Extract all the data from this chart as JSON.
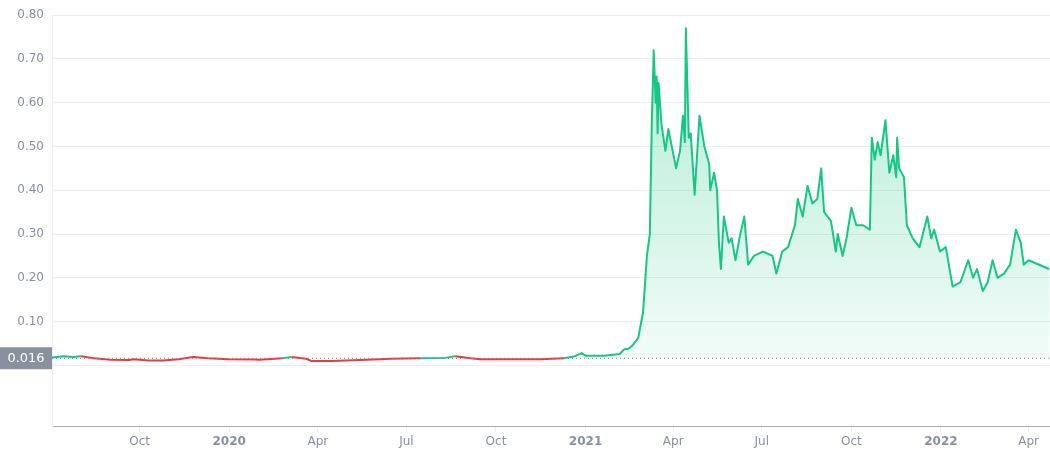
{
  "chart_data": {
    "type": "area",
    "x": [
      "2019-07-03",
      "2019-07-15",
      "2019-07-25",
      "2019-08-01",
      "2019-08-15",
      "2019-09-01",
      "2019-09-20",
      "2019-09-25",
      "2019-10-10",
      "2019-10-25",
      "2019-11-10",
      "2019-11-25",
      "2019-12-10",
      "2020-01-01",
      "2020-02-01",
      "2020-02-25",
      "2020-03-05",
      "2020-03-20",
      "2020-03-25",
      "2020-04-15",
      "2020-05-15",
      "2020-06-15",
      "2020-07-15",
      "2020-08-10",
      "2020-08-20",
      "2020-09-05",
      "2020-09-15",
      "2020-10-15",
      "2020-11-15",
      "2020-12-10",
      "2020-12-20",
      "2020-12-28",
      "2021-01-01",
      "2021-01-20",
      "2021-02-05",
      "2021-02-10",
      "2021-02-14",
      "2021-02-18",
      "2021-02-24",
      "2021-03-01",
      "2021-03-05",
      "2021-03-08",
      "2021-03-10",
      "2021-03-12",
      "2021-03-14",
      "2021-03-15",
      "2021-03-16",
      "2021-03-17",
      "2021-03-20",
      "2021-03-24",
      "2021-03-27",
      "2021-04-04",
      "2021-04-08",
      "2021-04-11",
      "2021-04-13",
      "2021-04-14",
      "2021-04-17",
      "2021-04-19",
      "2021-04-23",
      "2021-04-28",
      "2021-05-03",
      "2021-05-08",
      "2021-05-09",
      "2021-05-13",
      "2021-05-16",
      "2021-05-18",
      "2021-05-20",
      "2021-05-23",
      "2021-05-28",
      "2021-05-31",
      "2021-06-04",
      "2021-06-08",
      "2021-06-13",
      "2021-06-17",
      "2021-06-23",
      "2021-07-02",
      "2021-07-12",
      "2021-07-16",
      "2021-07-22",
      "2021-07-28",
      "2021-08-04",
      "2021-08-07",
      "2021-08-12",
      "2021-08-17",
      "2021-08-22",
      "2021-08-27",
      "2021-08-31",
      "2021-09-03",
      "2021-09-10",
      "2021-09-15",
      "2021-09-17",
      "2021-09-22",
      "2021-09-26",
      "2021-10-01",
      "2021-10-06",
      "2021-10-13",
      "2021-10-20",
      "2021-10-22",
      "2021-10-25",
      "2021-10-28",
      "2021-10-31",
      "2021-11-05",
      "2021-11-09",
      "2021-11-13",
      "2021-11-16",
      "2021-11-17",
      "2021-11-19",
      "2021-11-24",
      "2021-11-27",
      "2021-12-03",
      "2021-12-10",
      "2021-12-18",
      "2021-12-22",
      "2021-12-25",
      "2021-12-31",
      "2022-01-06",
      "2022-01-13",
      "2022-01-21",
      "2022-01-29",
      "2022-02-03",
      "2022-02-07",
      "2022-02-13",
      "2022-02-18",
      "2022-02-23",
      "2022-02-28",
      "2022-03-07",
      "2022-03-13",
      "2022-03-19",
      "2022-03-24",
      "2022-03-27",
      "2022-04-01",
      "2022-04-22"
    ],
    "series": [
      {
        "color": "#16c784",
        "values": [
          0.018,
          0.021,
          0.019,
          0.021,
          0.016,
          0.013,
          0.012,
          0.014,
          0.011,
          0.011,
          0.014,
          0.019,
          0.016,
          0.014,
          0.013,
          0.016,
          0.019,
          0.015,
          0.01,
          0.01,
          0.012,
          0.015,
          0.016,
          0.017,
          0.021,
          0.016,
          0.014,
          0.014,
          0.014,
          0.016,
          0.02,
          0.028,
          0.022,
          0.022,
          0.026,
          0.037,
          0.038,
          0.045,
          0.062,
          0.12,
          0.25,
          0.3,
          0.55,
          0.72,
          0.6,
          0.66,
          0.53,
          0.645,
          0.55,
          0.49,
          0.54,
          0.45,
          0.49,
          0.57,
          0.51,
          0.77,
          0.52,
          0.53,
          0.39,
          0.57,
          0.5,
          0.46,
          0.4,
          0.44,
          0.4,
          0.28,
          0.22,
          0.34,
          0.28,
          0.29,
          0.24,
          0.29,
          0.34,
          0.23,
          0.25,
          0.26,
          0.25,
          0.21,
          0.26,
          0.27,
          0.32,
          0.38,
          0.34,
          0.41,
          0.37,
          0.38,
          0.45,
          0.35,
          0.33,
          0.26,
          0.3,
          0.25,
          0.29,
          0.36,
          0.32,
          0.32,
          0.31,
          0.52,
          0.47,
          0.51,
          0.48,
          0.56,
          0.44,
          0.48,
          0.43,
          0.52,
          0.45,
          0.43,
          0.32,
          0.29,
          0.27,
          0.34,
          0.29,
          0.31,
          0.26,
          0.27,
          0.18,
          0.19,
          0.24,
          0.2,
          0.22,
          0.17,
          0.19,
          0.24,
          0.2,
          0.21,
          0.23,
          0.31,
          0.28,
          0.23,
          0.24,
          0.22
        ],
        "colors": [
          "#16c784",
          "#16c784",
          "#16c784",
          "#16c784",
          "#ea3943",
          "#ea3943",
          "#ea3943",
          "#ea3943",
          "#ea3943",
          "#ea3943",
          "#ea3943",
          "#16c784",
          "#ea3943",
          "#ea3943",
          "#ea3943",
          "#16c784",
          "#16c784",
          "#ea3943",
          "#ea3943",
          "#ea3943",
          "#ea3943",
          "#ea3943",
          "#16c784",
          "#16c784",
          "#16c784",
          "#ea3943",
          "#ea3943",
          "#ea3943",
          "#ea3943",
          "#16c784",
          "#16c784",
          "#16c784",
          "#16c784",
          "#16c784",
          "#16c784",
          "#16c784",
          "#16c784",
          "#16c784",
          "#16c784",
          "#16c784",
          "#16c784",
          "#16c784",
          "#16c784",
          "#16c784",
          "#16c784",
          "#16c784",
          "#16c784",
          "#16c784",
          "#16c784",
          "#16c784",
          "#16c784",
          "#16c784",
          "#16c784",
          "#16c784",
          "#16c784",
          "#16c784",
          "#16c784",
          "#16c784",
          "#16c784",
          "#16c784",
          "#16c784",
          "#16c784",
          "#16c784",
          "#16c784",
          "#16c784",
          "#16c784",
          "#16c784",
          "#16c784",
          "#16c784",
          "#16c784",
          "#16c784",
          "#16c784",
          "#16c784",
          "#16c784",
          "#16c784",
          "#16c784",
          "#16c784",
          "#16c784",
          "#16c784",
          "#16c784",
          "#16c784",
          "#16c784",
          "#16c784",
          "#16c784",
          "#16c784",
          "#16c784",
          "#16c784",
          "#16c784",
          "#16c784",
          "#16c784",
          "#16c784",
          "#16c784",
          "#16c784",
          "#16c784",
          "#16c784",
          "#16c784",
          "#16c784",
          "#16c784",
          "#16c784",
          "#16c784",
          "#16c784",
          "#16c784",
          "#16c784",
          "#16c784",
          "#16c784",
          "#16c784",
          "#16c784",
          "#16c784",
          "#16c784",
          "#16c784",
          "#16c784",
          "#16c784",
          "#16c784",
          "#16c784",
          "#16c784",
          "#16c784",
          "#16c784",
          "#16c784",
          "#16c784",
          "#16c784",
          "#16c784",
          "#16c784",
          "#16c784",
          "#16c784",
          "#16c784",
          "#16c784",
          "#16c784",
          "#16c784",
          "#16c784",
          "#16c784",
          "#16c784",
          "#16c784"
        ]
      }
    ],
    "xlim": [
      "2019-07-03",
      "2022-04-23"
    ],
    "xticks": [
      {
        "value": "2019-10-01",
        "label": "Oct"
      },
      {
        "value": "2020-01-01",
        "label": "2020"
      },
      {
        "value": "2020-04-01",
        "label": "Apr"
      },
      {
        "value": "2020-07-01",
        "label": "Jul"
      },
      {
        "value": "2020-10-01",
        "label": "Oct"
      },
      {
        "value": "2021-01-01",
        "label": "2021"
      },
      {
        "value": "2021-04-01",
        "label": "Apr"
      },
      {
        "value": "2021-07-01",
        "label": "Jul"
      },
      {
        "value": "2021-10-01",
        "label": "Oct"
      },
      {
        "value": "2022-01-01",
        "label": "2022"
      },
      {
        "value": "2022-04-01",
        "label": "Apr"
      }
    ],
    "ylim": [
      -0.14,
      0.8
    ],
    "yticks": [
      {
        "value": 0,
        "label": null
      },
      {
        "value": 0.1,
        "label": "0.10"
      },
      {
        "value": 0.2,
        "label": "0.20"
      },
      {
        "value": 0.3,
        "label": "0.30"
      },
      {
        "value": 0.4,
        "label": "0.40"
      },
      {
        "value": 0.5,
        "label": "0.50"
      },
      {
        "value": 0.6,
        "label": "0.60"
      },
      {
        "value": 0.7,
        "label": "0.70"
      },
      {
        "value": 0.8,
        "label": "0.80"
      }
    ],
    "ref_lines": [
      {
        "axis": "y",
        "value": 0.016,
        "label": "0.016",
        "color": "#8a919e",
        "line_style": "dotted"
      }
    ],
    "grid": "y",
    "legend": false,
    "marker": "none",
    "line_style": "solid"
  }
}
